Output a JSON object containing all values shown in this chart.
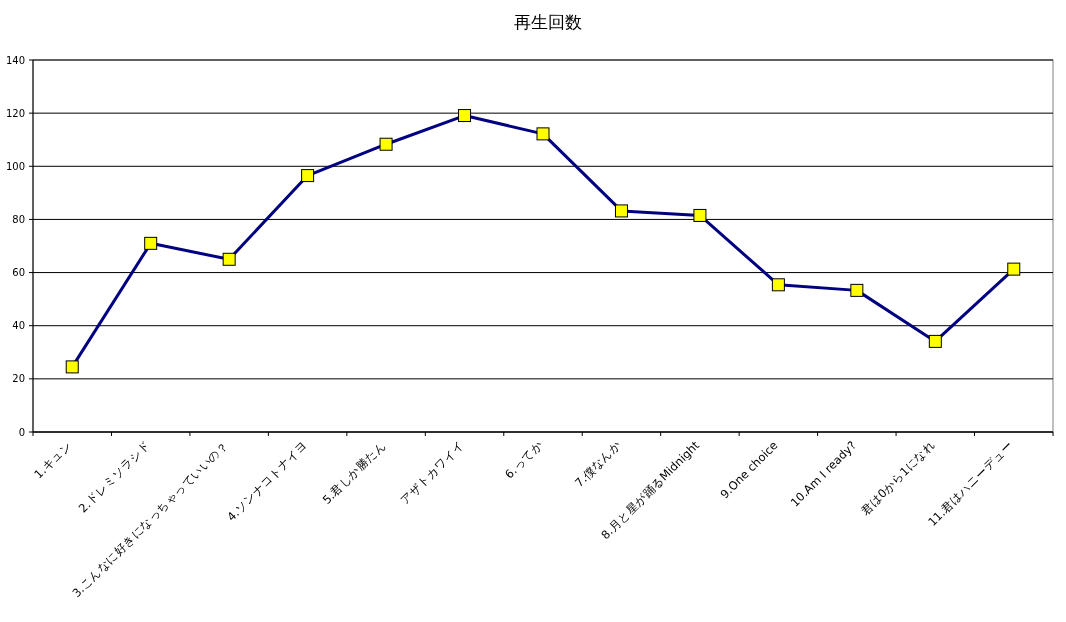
{
  "chart_data": {
    "type": "line",
    "title": "再生回数",
    "categories": [
      "1.キュン",
      "2.ドレミソラシド",
      "3.こんなに好きになっちゃっていいの？",
      "4.ソンナコトナイヨ",
      "5.君しか勝たん",
      "アザトカワイイ",
      "6.ってか",
      "7.僕なんか",
      "8.月と星が踊るMidnight",
      "9.One choice",
      "10.Am I ready?",
      "君は0から1になれ",
      "11.君はハニーデュー"
    ],
    "series": [
      {
        "color": "#000080",
        "values": [
          24.5,
          71,
          65,
          96.5,
          108.3,
          119.1,
          112.2,
          83.2,
          81.5,
          55.4,
          53.3,
          34.1,
          61.3
        ]
      }
    ],
    "ylim": [
      0,
      140
    ],
    "yticks": [
      0,
      20,
      40,
      60,
      80,
      100,
      120,
      140
    ],
    "grid": "y",
    "marker": "square",
    "line_style": "solid"
  }
}
